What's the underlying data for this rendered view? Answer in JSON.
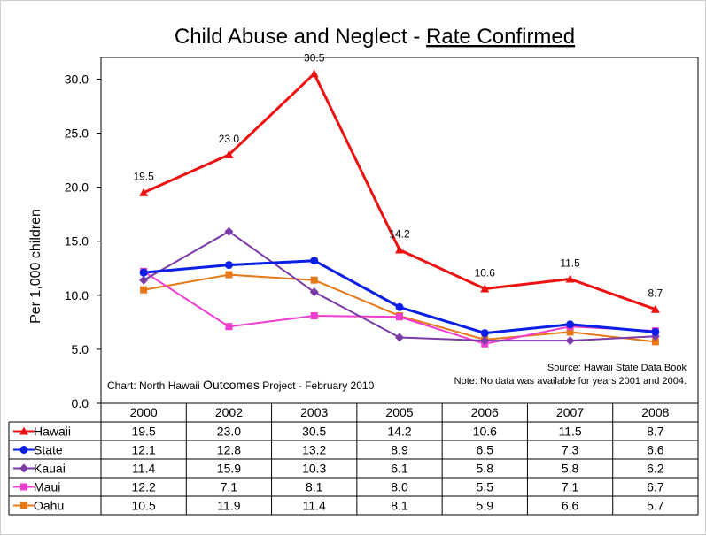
{
  "chart_data": {
    "type": "line",
    "title_prefix": "Child Abuse and Neglect - ",
    "title_emphasis": "Rate Confirmed",
    "ylabel": "Per 1,000 children",
    "xlabel": "",
    "ylim": [
      0,
      32
    ],
    "yticks": [
      "0.0",
      "5.0",
      "10.0",
      "15.0",
      "20.0",
      "25.0",
      "30.0"
    ],
    "categories": [
      "2000",
      "2002",
      "2003",
      "2005",
      "2006",
      "2007",
      "2008"
    ],
    "series": [
      {
        "name": "Hawaii",
        "color": "#ee1111",
        "marker": "triangle",
        "values": [
          19.5,
          23.0,
          30.5,
          14.2,
          10.6,
          11.5,
          8.7
        ],
        "labels": [
          "19.5",
          "23.0",
          "30.5",
          "14.2",
          "10.6",
          "11.5",
          "8.7"
        ],
        "table": [
          "19.5",
          "23.0",
          "30.5",
          "14.2",
          "10.6",
          "11.5",
          "8.7"
        ]
      },
      {
        "name": "State",
        "color": "#0a1ee6",
        "marker": "circle",
        "values": [
          12.1,
          12.8,
          13.2,
          8.9,
          6.5,
          7.3,
          6.6
        ],
        "table": [
          "12.1",
          "12.8",
          "13.2",
          "8.9",
          "6.5",
          "7.3",
          "6.6"
        ]
      },
      {
        "name": "Kauai",
        "color": "#7b3aa8",
        "marker": "diamond",
        "values": [
          11.4,
          15.9,
          10.3,
          6.1,
          5.8,
          5.8,
          6.2
        ],
        "table": [
          "11.4",
          "15.9",
          "10.3",
          "6.1",
          "5.8",
          "5.8",
          "6.2"
        ]
      },
      {
        "name": "Maui",
        "color": "#f03cd0",
        "marker": "square",
        "values": [
          12.2,
          7.1,
          8.1,
          8.0,
          5.5,
          7.1,
          6.7
        ],
        "table": [
          "12.2",
          "7.1",
          "8.1",
          "8.0",
          "5.5",
          "7.1",
          "6.7"
        ]
      },
      {
        "name": "Oahu",
        "color": "#e67817",
        "marker": "square",
        "values": [
          10.5,
          11.9,
          11.4,
          8.1,
          5.9,
          6.6,
          5.7
        ],
        "table": [
          "10.5",
          "11.9",
          "11.4",
          "8.1",
          "5.9",
          "6.6",
          "5.7"
        ]
      }
    ],
    "source_note": "Source: Hawaii State Data Book",
    "data_note": "Note: No data was available for years 2001 and 2004.",
    "credit_prefix": "Chart:  North Hawaii ",
    "credit_emphasis": "Outcomes",
    "credit_suffix": " Project - February 2010",
    "grid": false,
    "legend": "data-table"
  }
}
